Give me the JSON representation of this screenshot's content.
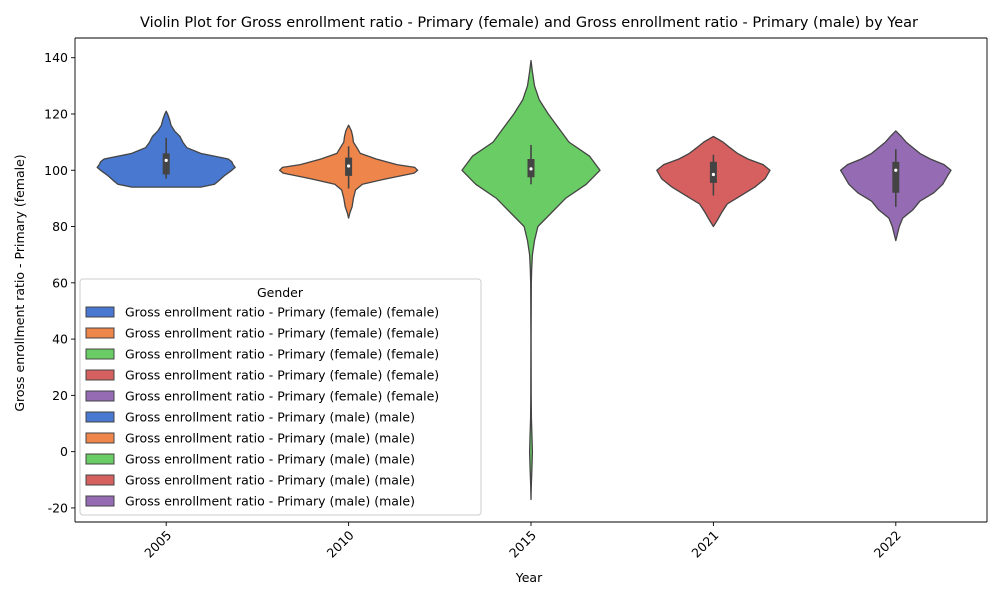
{
  "chart_data": {
    "type": "violin",
    "title": "Violin Plot for Gross enrollment ratio - Primary (female) and Gross enrollment ratio - Primary (male) by Year",
    "xlabel": "Year",
    "ylabel": "Gross enrollment ratio - Primary (female)",
    "categories": [
      "2005",
      "2010",
      "2015",
      "2021",
      "2022"
    ],
    "ylim": [
      -25,
      147
    ],
    "yticks": [
      -20,
      0,
      20,
      40,
      60,
      80,
      100,
      120,
      140
    ],
    "grid": false,
    "colors": [
      "#4878d0",
      "#ee854a",
      "#6acc64",
      "#d65f5f",
      "#956cb4"
    ],
    "violins": [
      {
        "category": "2005",
        "color": "#4878d0",
        "min": 94,
        "max": 121,
        "box": {
          "q1": 98.5,
          "median": 103.5,
          "q3": 106,
          "whisker_low": 97,
          "whisker_high": 111.5
        },
        "profile": [
          [
            94,
            0.5
          ],
          [
            95,
            0.7
          ],
          [
            96,
            0.75
          ],
          [
            98,
            0.84
          ],
          [
            100,
            0.95
          ],
          [
            101,
            1.0
          ],
          [
            102,
            0.97
          ],
          [
            103,
            0.95
          ],
          [
            104,
            0.9
          ],
          [
            106,
            0.5
          ],
          [
            108,
            0.3
          ],
          [
            110,
            0.24
          ],
          [
            112,
            0.2
          ],
          [
            114,
            0.12
          ],
          [
            116,
            0.07
          ],
          [
            118,
            0.05
          ],
          [
            120,
            0.02
          ],
          [
            121,
            0
          ]
        ]
      },
      {
        "category": "2010",
        "color": "#ee854a",
        "min": 83,
        "max": 116,
        "box": {
          "q1": 98,
          "median": 101.5,
          "q3": 104.5,
          "whisker_low": 93.5,
          "whisker_high": 108.5
        },
        "profile": [
          [
            83,
            0
          ],
          [
            85,
            0.02
          ],
          [
            87,
            0.05
          ],
          [
            90,
            0.07
          ],
          [
            93,
            0.1
          ],
          [
            95,
            0.2
          ],
          [
            97,
            0.55
          ],
          [
            99,
            0.95
          ],
          [
            100,
            1.0
          ],
          [
            101,
            0.96
          ],
          [
            102,
            0.7
          ],
          [
            104,
            0.4
          ],
          [
            106,
            0.17
          ],
          [
            108,
            0.12
          ],
          [
            110,
            0.07
          ],
          [
            112,
            0.06
          ],
          [
            114,
            0.04
          ],
          [
            116,
            0
          ]
        ]
      },
      {
        "category": "2015",
        "color": "#6acc64",
        "min": -17,
        "max": 139,
        "box": {
          "q1": 97.5,
          "median": 100.5,
          "q3": 104,
          "whisker_low": 95,
          "whisker_high": 109
        },
        "profile": [
          [
            -17,
            0
          ],
          [
            -12,
            0.005
          ],
          [
            -5,
            0.015
          ],
          [
            0,
            0.02
          ],
          [
            5,
            0.015
          ],
          [
            12,
            0.006
          ],
          [
            20,
            0.003
          ],
          [
            40,
            0.002
          ],
          [
            60,
            0.005
          ],
          [
            65,
            0.01
          ],
          [
            70,
            0.02
          ],
          [
            75,
            0.05
          ],
          [
            80,
            0.1
          ],
          [
            85,
            0.3
          ],
          [
            90,
            0.5
          ],
          [
            95,
            0.8
          ],
          [
            100,
            1.0
          ],
          [
            105,
            0.85
          ],
          [
            110,
            0.55
          ],
          [
            115,
            0.4
          ],
          [
            120,
            0.25
          ],
          [
            125,
            0.12
          ],
          [
            130,
            0.05
          ],
          [
            135,
            0.02
          ],
          [
            139,
            0
          ]
        ]
      },
      {
        "category": "2021",
        "color": "#d65f5f",
        "min": 80,
        "max": 112,
        "box": {
          "q1": 95.5,
          "median": 98.5,
          "q3": 103,
          "whisker_low": 91,
          "whisker_high": 105.5
        },
        "profile": [
          [
            80,
            0
          ],
          [
            82,
            0.05
          ],
          [
            85,
            0.12
          ],
          [
            88,
            0.2
          ],
          [
            91,
            0.4
          ],
          [
            94,
            0.6
          ],
          [
            97,
            0.75
          ],
          [
            100,
            0.82
          ],
          [
            102,
            0.72
          ],
          [
            104,
            0.5
          ],
          [
            106,
            0.35
          ],
          [
            108,
            0.24
          ],
          [
            110,
            0.14
          ],
          [
            112,
            0
          ]
        ]
      },
      {
        "category": "2022",
        "color": "#956cb4",
        "min": 75,
        "max": 114,
        "box": {
          "q1": 92,
          "median": 100,
          "q3": 103,
          "whisker_low": 87,
          "whisker_high": 107.5
        },
        "profile": [
          [
            75,
            0
          ],
          [
            77,
            0.02
          ],
          [
            80,
            0.05
          ],
          [
            83,
            0.1
          ],
          [
            86,
            0.25
          ],
          [
            89,
            0.35
          ],
          [
            92,
            0.55
          ],
          [
            95,
            0.68
          ],
          [
            98,
            0.75
          ],
          [
            100,
            0.8
          ],
          [
            102,
            0.7
          ],
          [
            104,
            0.5
          ],
          [
            106,
            0.35
          ],
          [
            108,
            0.25
          ],
          [
            110,
            0.15
          ],
          [
            112,
            0.08
          ],
          [
            114,
            0
          ]
        ]
      }
    ],
    "legend": {
      "title": "Gender",
      "placement": "lower-left",
      "entries": [
        {
          "label": "Gross enrollment ratio - Primary (female) (female)",
          "color": "#4878d0"
        },
        {
          "label": "Gross enrollment ratio - Primary (female) (female)",
          "color": "#ee854a"
        },
        {
          "label": "Gross enrollment ratio - Primary (female) (female)",
          "color": "#6acc64"
        },
        {
          "label": "Gross enrollment ratio - Primary (female) (female)",
          "color": "#d65f5f"
        },
        {
          "label": "Gross enrollment ratio - Primary (female) (female)",
          "color": "#956cb4"
        },
        {
          "label": "Gross enrollment ratio - Primary (male) (male)",
          "color": "#4878d0"
        },
        {
          "label": "Gross enrollment ratio - Primary (male) (male)",
          "color": "#ee854a"
        },
        {
          "label": "Gross enrollment ratio - Primary (male) (male)",
          "color": "#6acc64"
        },
        {
          "label": "Gross enrollment ratio - Primary (male) (male)",
          "color": "#d65f5f"
        },
        {
          "label": "Gross enrollment ratio - Primary (male) (male)",
          "color": "#956cb4"
        }
      ]
    }
  }
}
